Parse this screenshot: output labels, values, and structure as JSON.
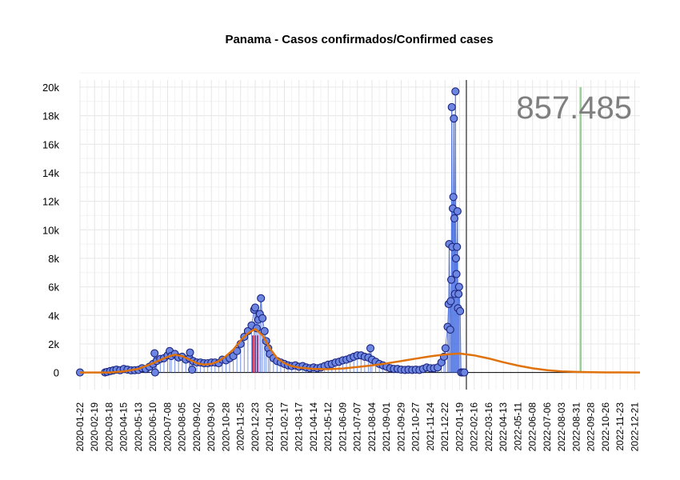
{
  "chart_data": {
    "type": "scatter",
    "title": "Panama - Casos confirmados/Confirmed cases",
    "xlabel": "",
    "ylabel": "",
    "x_start": "2020-01-22",
    "x_end": "2022-12-31",
    "ylim": [
      -1200,
      20500
    ],
    "yticks": [
      0,
      2000,
      4000,
      6000,
      8000,
      10000,
      12000,
      14000,
      16000,
      18000,
      20000
    ],
    "ytick_labels": [
      "0",
      "2k",
      "4k",
      "6k",
      "8k",
      "10k",
      "12k",
      "14k",
      "16k",
      "18k",
      "20k"
    ],
    "xtick_labels": [
      "2020-01-22",
      "2020-02-19",
      "2020-03-18",
      "2020-04-15",
      "2020-05-13",
      "2020-06-10",
      "2020-07-08",
      "2020-08-05",
      "2020-09-02",
      "2020-09-30",
      "2020-10-28",
      "2020-11-25",
      "2020-12-23",
      "2021-01-20",
      "2021-02-17",
      "2021-03-17",
      "2021-04-14",
      "2021-05-12",
      "2021-06-09",
      "2021-07-07",
      "2021-08-04",
      "2021-09-01",
      "2021-09-29",
      "2021-10-27",
      "2021-11-24",
      "2021-12-22",
      "2022-01-19",
      "2022-02-16",
      "2022-03-16",
      "2022-04-13",
      "2022-05-11",
      "2022-06-08",
      "2022-07-06",
      "2022-08-03",
      "2022-08-31",
      "2022-09-28",
      "2022-10-26",
      "2022-11-23",
      "2022-12-21"
    ],
    "grid": true,
    "annotation": "857.485",
    "current_date_line": "2022-02-01",
    "green_line_date": "2022-09-08",
    "red_bar_date": "2020-12-23",
    "daily_cases": [
      [
        "2020-01-22",
        0
      ],
      [
        "2020-03-10",
        0
      ],
      [
        "2020-03-14",
        40
      ],
      [
        "2020-03-20",
        100
      ],
      [
        "2020-03-26",
        150
      ],
      [
        "2020-04-01",
        200
      ],
      [
        "2020-04-08",
        160
      ],
      [
        "2020-04-15",
        250
      ],
      [
        "2020-04-22",
        200
      ],
      [
        "2020-04-29",
        150
      ],
      [
        "2020-05-06",
        160
      ],
      [
        "2020-05-13",
        180
      ],
      [
        "2020-05-20",
        300
      ],
      [
        "2020-05-27",
        250
      ],
      [
        "2020-06-03",
        400
      ],
      [
        "2020-06-10",
        600
      ],
      [
        "2020-06-13",
        1350
      ],
      [
        "2020-06-14",
        0
      ],
      [
        "2020-06-17",
        800
      ],
      [
        "2020-06-24",
        950
      ],
      [
        "2020-07-01",
        1000
      ],
      [
        "2020-07-08",
        1200
      ],
      [
        "2020-07-12",
        1500
      ],
      [
        "2020-07-15",
        1150
      ],
      [
        "2020-07-22",
        1300
      ],
      [
        "2020-07-29",
        1050
      ],
      [
        "2020-08-05",
        1100
      ],
      [
        "2020-08-12",
        900
      ],
      [
        "2020-08-19",
        1000
      ],
      [
        "2020-08-20",
        1400
      ],
      [
        "2020-08-24",
        200
      ],
      [
        "2020-08-26",
        800
      ],
      [
        "2020-09-02",
        700
      ],
      [
        "2020-09-09",
        700
      ],
      [
        "2020-09-16",
        650
      ],
      [
        "2020-09-23",
        650
      ],
      [
        "2020-09-30",
        700
      ],
      [
        "2020-10-07",
        700
      ],
      [
        "2020-10-14",
        650
      ],
      [
        "2020-10-21",
        900
      ],
      [
        "2020-10-28",
        850
      ],
      [
        "2020-11-04",
        1000
      ],
      [
        "2020-11-11",
        1150
      ],
      [
        "2020-11-18",
        1500
      ],
      [
        "2020-11-25",
        2000
      ],
      [
        "2020-12-02",
        2500
      ],
      [
        "2020-12-09",
        2900
      ],
      [
        "2020-12-16",
        3300
      ],
      [
        "2020-12-21",
        4400
      ],
      [
        "2020-12-23",
        4550
      ],
      [
        "2020-12-26",
        3100
      ],
      [
        "2020-12-29",
        3700
      ],
      [
        "2021-01-01",
        4100
      ],
      [
        "2021-01-03",
        5200
      ],
      [
        "2021-01-06",
        3800
      ],
      [
        "2021-01-10",
        2900
      ],
      [
        "2021-01-13",
        2200
      ],
      [
        "2021-01-17",
        1700
      ],
      [
        "2021-01-20",
        1300
      ],
      [
        "2021-01-27",
        1000
      ],
      [
        "2021-02-03",
        800
      ],
      [
        "2021-02-10",
        700
      ],
      [
        "2021-02-17",
        600
      ],
      [
        "2021-02-24",
        500
      ],
      [
        "2021-03-03",
        450
      ],
      [
        "2021-03-10",
        500
      ],
      [
        "2021-03-17",
        400
      ],
      [
        "2021-03-24",
        450
      ],
      [
        "2021-03-31",
        350
      ],
      [
        "2021-04-07",
        300
      ],
      [
        "2021-04-14",
        350
      ],
      [
        "2021-04-21",
        300
      ],
      [
        "2021-04-28",
        350
      ],
      [
        "2021-05-05",
        450
      ],
      [
        "2021-05-12",
        550
      ],
      [
        "2021-05-19",
        600
      ],
      [
        "2021-05-26",
        700
      ],
      [
        "2021-06-02",
        750
      ],
      [
        "2021-06-09",
        850
      ],
      [
        "2021-06-16",
        900
      ],
      [
        "2021-06-23",
        1000
      ],
      [
        "2021-06-30",
        1100
      ],
      [
        "2021-07-07",
        1200
      ],
      [
        "2021-07-14",
        1200
      ],
      [
        "2021-07-21",
        1100
      ],
      [
        "2021-07-28",
        1050
      ],
      [
        "2021-08-01",
        1700
      ],
      [
        "2021-08-04",
        900
      ],
      [
        "2021-08-11",
        750
      ],
      [
        "2021-08-18",
        600
      ],
      [
        "2021-08-25",
        500
      ],
      [
        "2021-09-01",
        400
      ],
      [
        "2021-09-08",
        300
      ],
      [
        "2021-09-15",
        250
      ],
      [
        "2021-09-22",
        250
      ],
      [
        "2021-09-29",
        200
      ],
      [
        "2021-10-06",
        180
      ],
      [
        "2021-10-13",
        200
      ],
      [
        "2021-10-20",
        180
      ],
      [
        "2021-10-27",
        200
      ],
      [
        "2021-11-03",
        180
      ],
      [
        "2021-11-10",
        250
      ],
      [
        "2021-11-17",
        350
      ],
      [
        "2021-11-24",
        300
      ],
      [
        "2021-12-01",
        300
      ],
      [
        "2021-12-08",
        350
      ],
      [
        "2021-12-15",
        700
      ],
      [
        "2021-12-20",
        1100
      ],
      [
        "2021-12-23",
        1700
      ],
      [
        "2021-12-27",
        3200
      ],
      [
        "2021-12-29",
        4800
      ],
      [
        "2021-12-30",
        9000
      ],
      [
        "2022-01-01",
        3000
      ],
      [
        "2022-01-02",
        5000
      ],
      [
        "2022-01-03",
        6500
      ],
      [
        "2022-01-04",
        18600
      ],
      [
        "2022-01-05",
        8800
      ],
      [
        "2022-01-06",
        11500
      ],
      [
        "2022-01-07",
        12300
      ],
      [
        "2022-01-08",
        17800
      ],
      [
        "2022-01-09",
        10800
      ],
      [
        "2022-01-10",
        5500
      ],
      [
        "2022-01-11",
        19700
      ],
      [
        "2022-01-12",
        8000
      ],
      [
        "2022-01-13",
        6900
      ],
      [
        "2022-01-14",
        8800
      ],
      [
        "2022-01-15",
        11300
      ],
      [
        "2022-01-16",
        4500
      ],
      [
        "2022-01-17",
        5500
      ],
      [
        "2022-01-18",
        6000
      ],
      [
        "2022-01-20",
        4300
      ],
      [
        "2022-01-22",
        0
      ],
      [
        "2022-01-25",
        0
      ],
      [
        "2022-01-28",
        0
      ]
    ],
    "trend_curve": [
      [
        "2020-01-22",
        0
      ],
      [
        "2020-03-18",
        0
      ],
      [
        "2020-04-15",
        80
      ],
      [
        "2020-05-13",
        250
      ],
      [
        "2020-06-10",
        650
      ],
      [
        "2020-07-08",
        1100
      ],
      [
        "2020-07-22",
        1250
      ],
      [
        "2020-08-05",
        1150
      ],
      [
        "2020-08-19",
        900
      ],
      [
        "2020-09-02",
        650
      ],
      [
        "2020-09-16",
        550
      ],
      [
        "2020-09-30",
        600
      ],
      [
        "2020-10-14",
        800
      ],
      [
        "2020-10-28",
        1150
      ],
      [
        "2020-11-11",
        1600
      ],
      [
        "2020-11-25",
        2250
      ],
      [
        "2020-12-09",
        2750
      ],
      [
        "2020-12-23",
        3050
      ],
      [
        "2021-01-06",
        2600
      ],
      [
        "2021-01-20",
        1700
      ],
      [
        "2021-02-03",
        1000
      ],
      [
        "2021-02-17",
        650
      ],
      [
        "2021-03-03",
        450
      ],
      [
        "2021-03-17",
        340
      ],
      [
        "2021-04-14",
        250
      ],
      [
        "2021-05-12",
        230
      ],
      [
        "2021-06-09",
        280
      ],
      [
        "2021-07-07",
        380
      ],
      [
        "2021-08-04",
        500
      ],
      [
        "2021-09-01",
        640
      ],
      [
        "2021-09-29",
        800
      ],
      [
        "2021-10-27",
        970
      ],
      [
        "2021-11-24",
        1130
      ],
      [
        "2021-12-22",
        1260
      ],
      [
        "2022-01-19",
        1330
      ],
      [
        "2022-02-16",
        1200
      ],
      [
        "2022-03-16",
        980
      ],
      [
        "2022-04-13",
        720
      ],
      [
        "2022-05-11",
        480
      ],
      [
        "2022-06-08",
        290
      ],
      [
        "2022-07-06",
        160
      ],
      [
        "2022-08-03",
        80
      ],
      [
        "2022-08-31",
        40
      ],
      [
        "2022-09-28",
        20
      ],
      [
        "2022-10-26",
        8
      ],
      [
        "2022-11-23",
        3
      ],
      [
        "2022-12-31",
        1
      ]
    ],
    "colors": {
      "points_fill": "#6c86e2",
      "points_stroke": "#1a237e",
      "stems": "#4169e1",
      "trend": "#e0720b",
      "red_bar": "#d62b3a",
      "green_line": "#9ccc9c",
      "vline": "#000000",
      "annotation": "#7f7f7f"
    }
  }
}
